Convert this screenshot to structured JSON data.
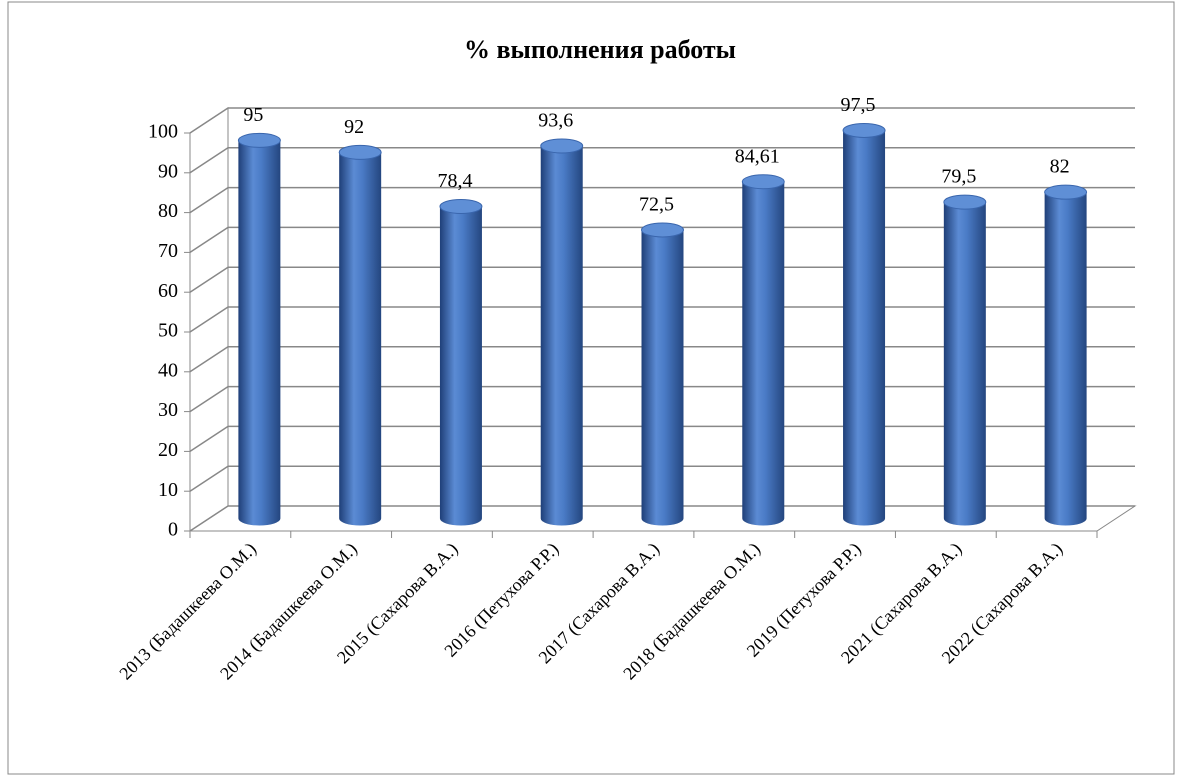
{
  "chart_data": {
    "type": "bar3d",
    "title": "% выполнения работы",
    "categories": [
      "2013 (Бадашкеева О.М.)",
      "2014 (Бадашкеева О.М.)",
      "2015 (Сахарова В.А.)",
      "2016 (Петухова Р.Р.)",
      "2017 (Сахарова В.А.)",
      "2018 (Бадашкеева О.М.)",
      "2019 (Петухова Р.Р.)",
      "2021 (Сахарова В.А.)",
      "2022 (Сахарова В.А.)"
    ],
    "values": [
      95,
      92,
      78.4,
      93.6,
      72.5,
      84.61,
      97.5,
      79.5,
      82
    ],
    "value_labels": [
      "95",
      "92",
      "78,4",
      "93,6",
      "72,5",
      "84,61",
      "97,5",
      "79,5",
      "82"
    ],
    "color": "#3f6fb8",
    "ylim": [
      0,
      100
    ],
    "yticks": [
      0,
      10,
      20,
      30,
      40,
      50,
      60,
      70,
      80,
      90,
      100
    ],
    "grid": true
  }
}
